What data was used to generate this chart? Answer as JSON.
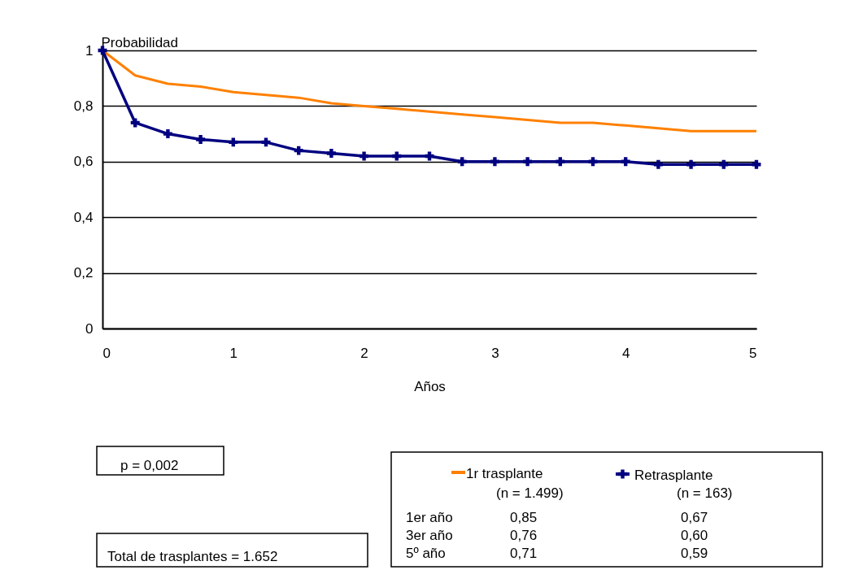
{
  "chart_data": {
    "type": "line",
    "xlabel": "Años",
    "ylabel": "Probabilidad",
    "x": [
      0,
      0.25,
      0.5,
      0.75,
      1,
      1.25,
      1.5,
      1.75,
      2,
      2.25,
      2.5,
      2.75,
      3,
      3.25,
      3.5,
      3.75,
      4,
      4.25,
      4.5,
      4.75,
      5
    ],
    "series": [
      {
        "name": "1r trasplante",
        "color": "#ff8000",
        "marker": "none",
        "values": [
          1,
          0.91,
          0.88,
          0.87,
          0.85,
          0.84,
          0.83,
          0.81,
          0.8,
          0.79,
          0.78,
          0.77,
          0.76,
          0.75,
          0.74,
          0.74,
          0.73,
          0.72,
          0.71,
          0.71,
          0.71
        ]
      },
      {
        "name": "Retrasplante",
        "color": "#000080",
        "marker": "cross",
        "values": [
          1,
          0.74,
          0.7,
          0.68,
          0.67,
          0.67,
          0.64,
          0.63,
          0.62,
          0.62,
          0.62,
          0.6,
          0.6,
          0.6,
          0.6,
          0.6,
          0.6,
          0.59,
          0.59,
          0.59,
          0.59
        ]
      }
    ],
    "xlim": [
      0,
      5
    ],
    "xticks": [
      0,
      1,
      2,
      3,
      4,
      5
    ],
    "ylim": [
      0,
      1
    ],
    "yticks": [
      0,
      {
        "value": 0.2,
        "label": "0,2"
      },
      {
        "value": 0.4,
        "label": "0,4"
      },
      {
        "value": 0.6,
        "label": "0,6"
      },
      {
        "value": 0.8,
        "label": "0,8"
      },
      1
    ],
    "grid": "y",
    "legend": "bottom right",
    "line_style": "solid",
    "annotations": [
      "p = 0,002",
      "Total de trasplantes = 1.652",
      "(n = 1.499)",
      "(n = 163)",
      "1er año",
      "0,85",
      "0,67",
      "3er año",
      "0,76",
      "0,60",
      "5º año",
      "0,71",
      "0,59"
    ]
  }
}
